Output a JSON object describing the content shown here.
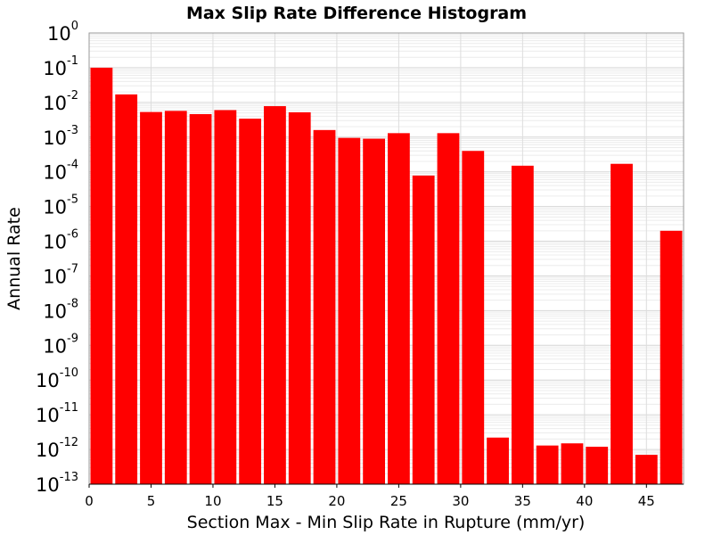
{
  "chart_data": {
    "type": "bar",
    "title": "Max Slip Rate Difference Histogram",
    "xlabel": "Section Max - Min Slip Rate in Rupture (mm/yr)",
    "ylabel": "Annual Rate",
    "x_scale": "linear",
    "y_scale": "log",
    "xlim": [
      0,
      48
    ],
    "ylim": [
      1e-13,
      1
    ],
    "x_ticks": [
      "0",
      "5",
      "10",
      "15",
      "20",
      "25",
      "30",
      "35",
      "40",
      "45"
    ],
    "y_ticks": [
      {
        "base": "10",
        "exp": "0"
      },
      {
        "base": "10",
        "exp": "-1"
      },
      {
        "base": "10",
        "exp": "-2"
      },
      {
        "base": "10",
        "exp": "-3"
      },
      {
        "base": "10",
        "exp": "-4"
      },
      {
        "base": "10",
        "exp": "-5"
      },
      {
        "base": "10",
        "exp": "-6"
      },
      {
        "base": "10",
        "exp": "-7"
      },
      {
        "base": "10",
        "exp": "-8"
      },
      {
        "base": "10",
        "exp": "-9"
      },
      {
        "base": "10",
        "exp": "-10"
      },
      {
        "base": "10",
        "exp": "-11"
      },
      {
        "base": "10",
        "exp": "-12"
      },
      {
        "base": "10",
        "exp": "-13"
      }
    ],
    "bin_width": 2,
    "x": [
      1,
      3,
      5,
      7,
      9,
      11,
      13,
      15,
      17,
      19,
      21,
      23,
      25,
      27,
      29,
      31,
      33,
      35,
      37,
      39,
      41,
      43,
      45,
      47
    ],
    "values": [
      0.1,
      0.017,
      0.0053,
      0.0057,
      0.0046,
      0.006,
      0.0034,
      0.0078,
      0.0052,
      0.0016,
      0.00095,
      0.0009,
      0.0013,
      7.8e-05,
      0.0013,
      0.0004,
      2.2e-12,
      0.00015,
      1.3e-12,
      1.5e-12,
      1.2e-12,
      0.00017,
      7e-13,
      2e-06
    ],
    "bar_color": "#ff0000",
    "grid": true
  }
}
